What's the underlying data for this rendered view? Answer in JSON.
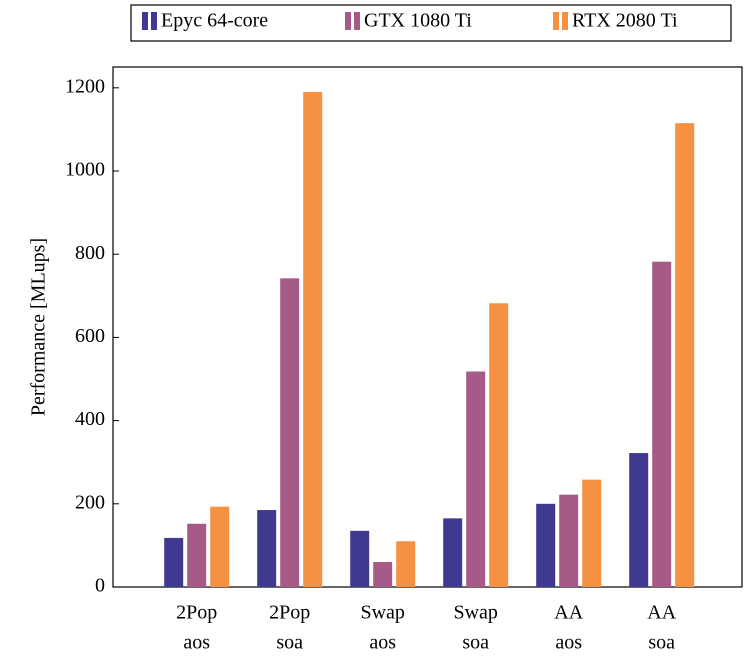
{
  "chart_data": {
    "type": "bar",
    "ylabel": "Performance [MLups]",
    "categories": [
      [
        "2Pop",
        "aos"
      ],
      [
        "2Pop",
        "soa"
      ],
      [
        "Swap",
        "aos"
      ],
      [
        "Swap",
        "soa"
      ],
      [
        "AA",
        "aos"
      ],
      [
        "AA",
        "soa"
      ]
    ],
    "series": [
      {
        "name": "Epyc 64-core",
        "color": "#3f3a8f",
        "values": [
          118,
          185,
          135,
          165,
          200,
          322
        ]
      },
      {
        "name": "GTX 1080 Ti",
        "color": "#a65a87",
        "values": [
          152,
          742,
          60,
          518,
          222,
          782
        ]
      },
      {
        "name": "RTX 2080 Ti",
        "color": "#f59142",
        "values": [
          193,
          1190,
          110,
          682,
          258,
          1115
        ]
      }
    ],
    "ylim": [
      0,
      1250
    ],
    "yticks": [
      0,
      200,
      400,
      600,
      800,
      1000,
      1200
    ],
    "legend": "top"
  }
}
